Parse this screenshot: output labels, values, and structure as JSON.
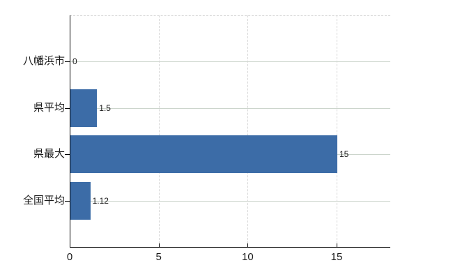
{
  "chart_data": {
    "type": "bar",
    "orientation": "horizontal",
    "title": "",
    "xlabel": "",
    "ylabel": "",
    "categories": [
      "八幡浜市",
      "県平均",
      "県最大",
      "全国平均"
    ],
    "values": [
      0,
      1.5,
      15,
      1.12
    ],
    "value_labels": [
      "0",
      "1.5",
      "15",
      "1.12"
    ],
    "x_ticks": [
      0,
      5,
      10,
      15
    ],
    "x_tick_labels": [
      "0",
      "5",
      "10",
      "15"
    ],
    "xlim": [
      0,
      18
    ],
    "legend_position": "none",
    "grid": {
      "horizontal_lines": "solid, one per category",
      "vertical_lines": "dashed at each x tick",
      "top_border": "dashed"
    },
    "colors": {
      "bar": "#3c6ca7",
      "axis": "#000000",
      "horizontal_grid": "#ccd5cc",
      "vertical_grid": "#d6d6d6",
      "label_text": "#1a1a1a",
      "background": "#ffffff"
    }
  }
}
